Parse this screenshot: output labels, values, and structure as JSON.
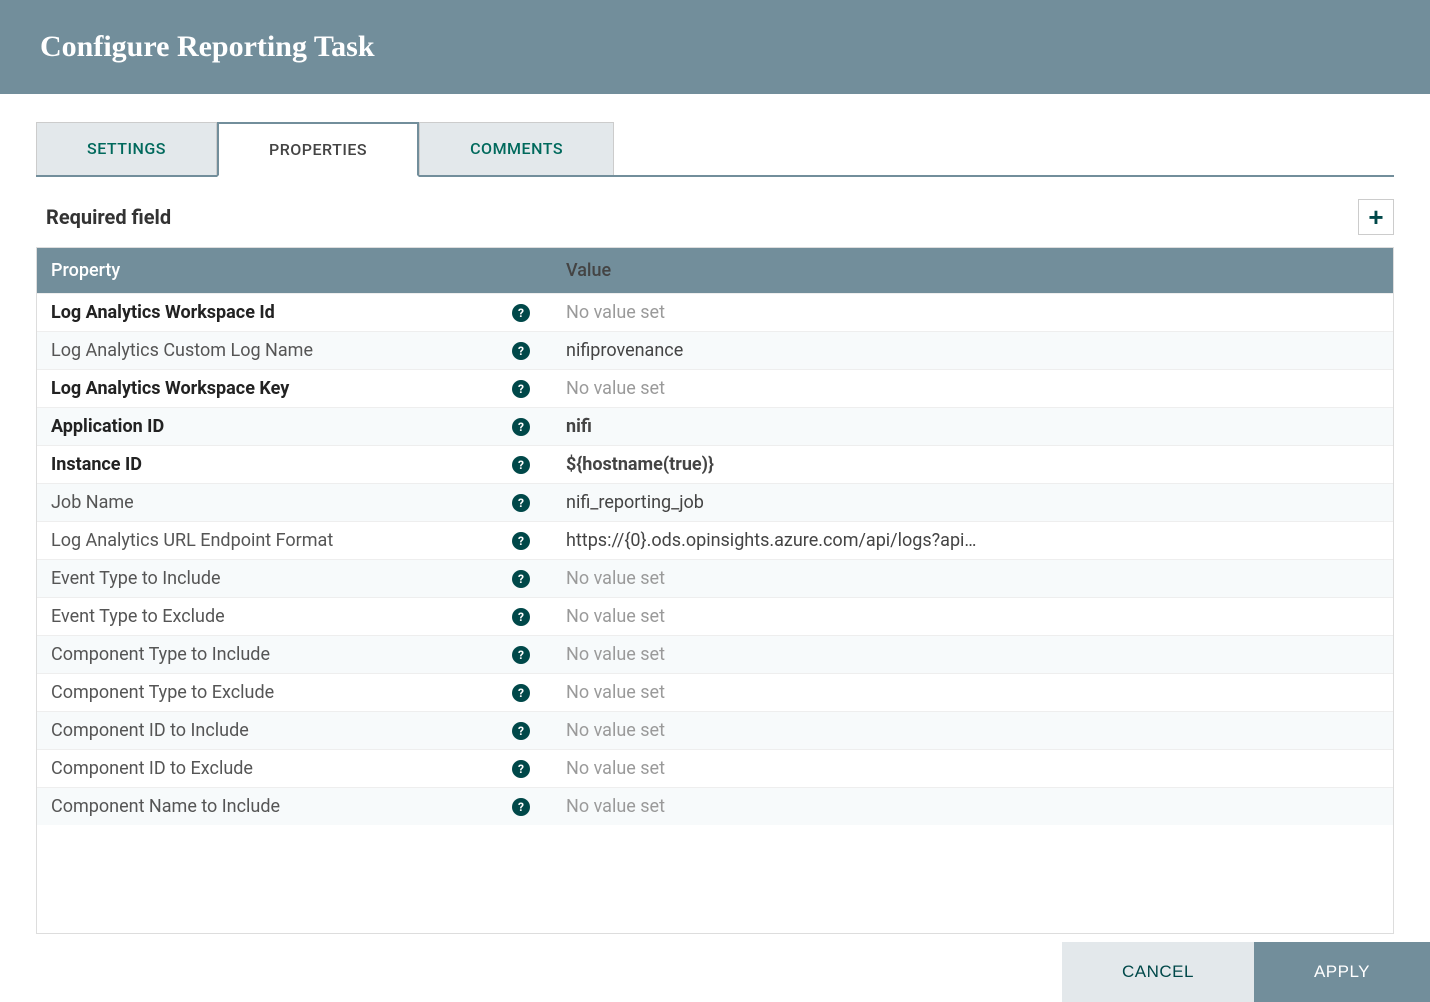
{
  "colors": {
    "header_bg": "#728e9b",
    "accent": "#004849",
    "tab_inactive_bg": "#e3e8eb",
    "row_alt_bg": "#f7fafb",
    "novalue_text": "#9a9a9a"
  },
  "dialog": {
    "title": "Configure Reporting Task"
  },
  "tabs": [
    {
      "id": "settings",
      "label": "SETTINGS",
      "active": false
    },
    {
      "id": "properties",
      "label": "PROPERTIES",
      "active": true
    },
    {
      "id": "comments",
      "label": "COMMENTS",
      "active": false
    }
  ],
  "section": {
    "label": "Required field"
  },
  "table": {
    "headers": {
      "property": "Property",
      "value": "Value"
    },
    "no_value_text": "No value set",
    "rows": [
      {
        "name": "Log Analytics Workspace Id",
        "value": null,
        "required": true,
        "bold_value": false
      },
      {
        "name": "Log Analytics Custom Log Name",
        "value": "nifiprovenance",
        "required": false,
        "bold_value": false
      },
      {
        "name": "Log Analytics Workspace Key",
        "value": null,
        "required": true,
        "bold_value": false
      },
      {
        "name": "Application ID",
        "value": "nifi",
        "required": true,
        "bold_value": true
      },
      {
        "name": "Instance ID",
        "value": "${hostname(true)}",
        "required": true,
        "bold_value": true
      },
      {
        "name": "Job Name",
        "value": "nifi_reporting_job",
        "required": false,
        "bold_value": false
      },
      {
        "name": "Log Analytics URL Endpoint Format",
        "value": "https://{0}.ods.opinsights.azure.com/api/logs?api…",
        "required": false,
        "bold_value": false
      },
      {
        "name": "Event Type to Include",
        "value": null,
        "required": false,
        "bold_value": false
      },
      {
        "name": "Event Type to Exclude",
        "value": null,
        "required": false,
        "bold_value": false
      },
      {
        "name": "Component Type to Include",
        "value": null,
        "required": false,
        "bold_value": false
      },
      {
        "name": "Component Type to Exclude",
        "value": null,
        "required": false,
        "bold_value": false
      },
      {
        "name": "Component ID to Include",
        "value": null,
        "required": false,
        "bold_value": false
      },
      {
        "name": "Component ID to Exclude",
        "value": null,
        "required": false,
        "bold_value": false
      },
      {
        "name": "Component Name to Include",
        "value": null,
        "required": false,
        "bold_value": false
      }
    ]
  },
  "footer": {
    "cancel": "CANCEL",
    "apply": "APPLY"
  }
}
